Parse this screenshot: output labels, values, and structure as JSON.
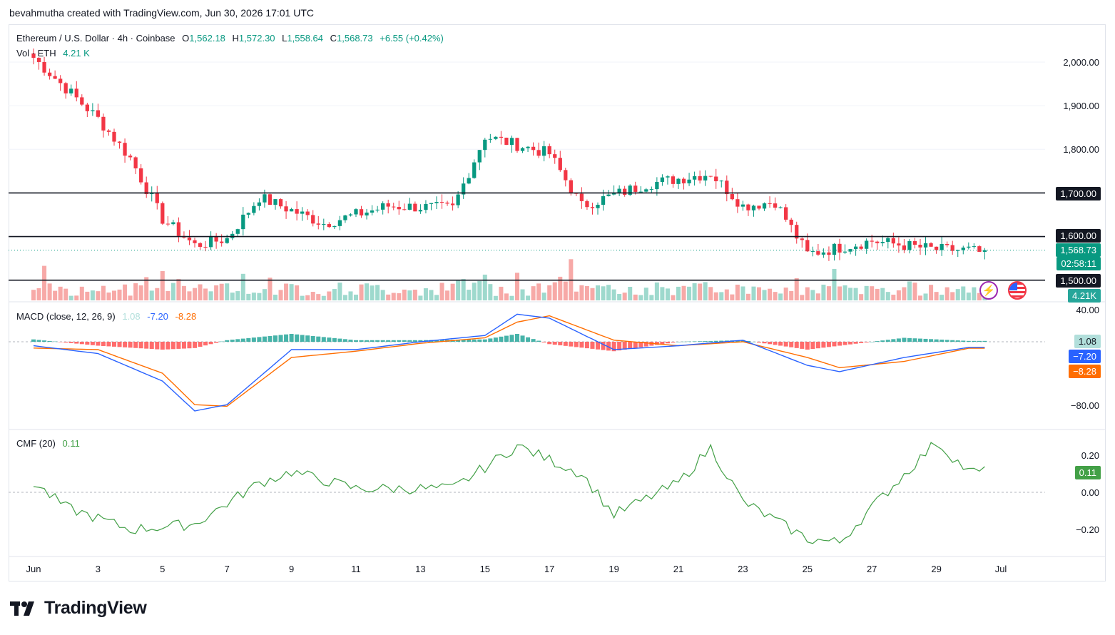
{
  "credit": "bevahmutha created with TradingView.com, Jun 30, 2026 17:01 UTC",
  "symbol": {
    "title": "Ethereum / U.S. Dollar · 4h · Coinbase",
    "open_label": "O",
    "open": "1,562.18",
    "high_label": "H",
    "high": "1,572.30",
    "low_label": "L",
    "low": "1,558.64",
    "close_label": "C",
    "close": "1,568.73",
    "change": "+6.55 (+0.42%)"
  },
  "volume": {
    "label": "Vol · ETH",
    "value": "4.21 K"
  },
  "price_axis": [
    "2,000.00",
    "1,900.00",
    "1,800.00",
    "1,700.00",
    "1,600.00",
    "1,500.00"
  ],
  "price_tags": {
    "level_1700": "1,700.00",
    "level_1600": "1,600.00",
    "level_1500": "1,500.00",
    "last_price": "1,568.73",
    "countdown": "02:58:11",
    "volume_tag": "4.21K"
  },
  "macd": {
    "label": "MACD (close, 12, 26, 9)",
    "hist": "1.08",
    "macd": "-7.20",
    "signal": "-8.28",
    "axis": [
      "40.00",
      "−80.00"
    ],
    "tags": {
      "hist": "1.08",
      "macd": "−7.20",
      "signal": "−8.28"
    }
  },
  "cmf": {
    "label": "CMF (20)",
    "value": "0.11",
    "axis": [
      "0.20",
      "0.00",
      "−0.20"
    ],
    "tag": "0.11"
  },
  "dates": [
    "Jun",
    "3",
    "5",
    "7",
    "9",
    "11",
    "13",
    "15",
    "17",
    "19",
    "21",
    "23",
    "25",
    "27",
    "29",
    "Jul"
  ],
  "brand": "TradingView",
  "colors": {
    "up": "#089981",
    "down": "#f23645",
    "vol_up": "#9ed9cd",
    "vol_down": "#f7a9a7",
    "macd": "#2962ff",
    "signal": "#ff6d00",
    "cmf": "#43a047",
    "level": "#131722"
  },
  "chart_data": {
    "type": "candlestick",
    "interval": "4h",
    "price_ylim": [
      1470,
      2050
    ],
    "horizontal_levels": [
      1700,
      1600,
      1500
    ],
    "key_closes": [
      {
        "date": "Jun 1",
        "price": 2010
      },
      {
        "date": "Jun 3",
        "price": 1870
      },
      {
        "date": "Jun 4",
        "price": 1780
      },
      {
        "date": "Jun 5",
        "price": 1640
      },
      {
        "date": "Jun 6",
        "price": 1580
      },
      {
        "date": "Jun 7",
        "price": 1595
      },
      {
        "date": "Jun 8",
        "price": 1690
      },
      {
        "date": "Jun 10",
        "price": 1630
      },
      {
        "date": "Jun 12",
        "price": 1670
      },
      {
        "date": "Jun 14",
        "price": 1665
      },
      {
        "date": "Jun 15",
        "price": 1830
      },
      {
        "date": "Jun 17",
        "price": 1790
      },
      {
        "date": "Jun 18",
        "price": 1670
      },
      {
        "date": "Jun 20",
        "price": 1720
      },
      {
        "date": "Jun 22",
        "price": 1745
      },
      {
        "date": "Jun 23",
        "price": 1670
      },
      {
        "date": "Jun 24",
        "price": 1680
      },
      {
        "date": "Jun 25",
        "price": 1560
      },
      {
        "date": "Jun 27",
        "price": 1590
      },
      {
        "date": "Jun 29",
        "price": 1570
      },
      {
        "date": "Jun 30",
        "price": 1568.73
      }
    ],
    "macd_ylim": [
      -95,
      45
    ],
    "macd_key": [
      {
        "date": "Jun 1",
        "macd": -5,
        "signal": -8
      },
      {
        "date": "Jun 3",
        "macd": -15,
        "signal": -10
      },
      {
        "date": "Jun 5",
        "macd": -50,
        "signal": -40
      },
      {
        "date": "Jun 6",
        "macd": -88,
        "signal": -80
      },
      {
        "date": "Jun 7",
        "macd": -80,
        "signal": -82
      },
      {
        "date": "Jun 9",
        "macd": -10,
        "signal": -20
      },
      {
        "date": "Jun 11",
        "macd": -10,
        "signal": -12
      },
      {
        "date": "Jun 13",
        "macd": 0,
        "signal": -2
      },
      {
        "date": "Jun 15",
        "macd": 8,
        "signal": 5
      },
      {
        "date": "Jun 16",
        "macd": 35,
        "signal": 25
      },
      {
        "date": "Jun 17",
        "macd": 30,
        "signal": 33
      },
      {
        "date": "Jun 19",
        "macd": -10,
        "signal": 2
      },
      {
        "date": "Jun 21",
        "macd": -5,
        "signal": -5
      },
      {
        "date": "Jun 23",
        "macd": 2,
        "signal": 0
      },
      {
        "date": "Jun 25",
        "macd": -30,
        "signal": -20
      },
      {
        "date": "Jun 26",
        "macd": -38,
        "signal": -33
      },
      {
        "date": "Jun 28",
        "macd": -20,
        "signal": -25
      },
      {
        "date": "Jun 30",
        "macd": -7.2,
        "signal": -8.28
      }
    ],
    "cmf_ylim": [
      -0.32,
      0.32
    ],
    "cmf_key": [
      {
        "date": "Jun 1",
        "value": 0.05
      },
      {
        "date": "Jun 2",
        "value": -0.08
      },
      {
        "date": "Jun 4",
        "value": -0.2
      },
      {
        "date": "Jun 6",
        "value": -0.17
      },
      {
        "date": "Jun 8",
        "value": 0.05
      },
      {
        "date": "Jun 9",
        "value": 0.11
      },
      {
        "date": "Jun 11",
        "value": 0.02
      },
      {
        "date": "Jun 14",
        "value": 0.02
      },
      {
        "date": "Jun 16",
        "value": 0.25
      },
      {
        "date": "Jun 18",
        "value": 0.1
      },
      {
        "date": "Jun 19",
        "value": -0.12
      },
      {
        "date": "Jun 21",
        "value": 0.05
      },
      {
        "date": "Jun 22",
        "value": 0.24
      },
      {
        "date": "Jun 23",
        "value": -0.05
      },
      {
        "date": "Jun 25",
        "value": -0.25
      },
      {
        "date": "Jun 26",
        "value": -0.27
      },
      {
        "date": "Jun 27",
        "value": -0.08
      },
      {
        "date": "Jun 29",
        "value": 0.27
      },
      {
        "date": "Jun 30",
        "value": 0.11
      }
    ]
  }
}
